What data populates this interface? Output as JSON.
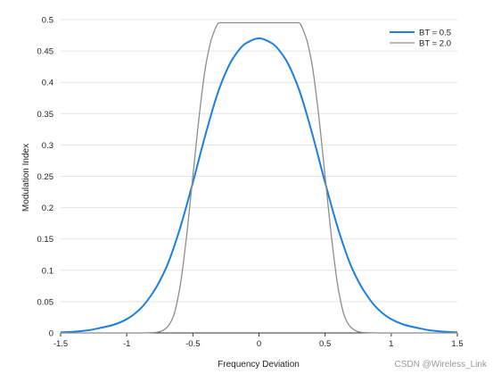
{
  "chart_data": {
    "type": "line",
    "title": "",
    "xlabel": "Frequency Deviation",
    "ylabel": "Modulation Index",
    "xlim": [
      -1.5,
      1.5
    ],
    "ylim": [
      0,
      0.5
    ],
    "x_ticks": [
      "-1.5",
      "-1",
      "-0.5",
      "0",
      "0.5",
      "1",
      "1.5"
    ],
    "y_ticks": [
      "0",
      "0.05",
      "0.1",
      "0.15",
      "0.2",
      "0.25",
      "0.3",
      "0.35",
      "0.4",
      "0.45",
      "0.5"
    ],
    "grid": "horizontal",
    "legend_position": "top-right",
    "series": [
      {
        "name": "BT = 0.5",
        "color": "#1a7fe0",
        "x": [
          -1.5,
          -1.4,
          -1.3,
          -1.2,
          -1.1,
          -1.0,
          -0.9,
          -0.8,
          -0.7,
          -0.6,
          -0.5,
          -0.4,
          -0.3,
          -0.2,
          -0.1,
          0.0,
          0.1,
          0.2,
          0.3,
          0.4,
          0.5,
          0.6,
          0.7,
          0.8,
          0.9,
          1.0,
          1.1,
          1.2,
          1.3,
          1.4,
          1.5
        ],
        "values": [
          0.001,
          0.002,
          0.004,
          0.008,
          0.013,
          0.022,
          0.038,
          0.065,
          0.105,
          0.165,
          0.24,
          0.32,
          0.39,
          0.437,
          0.462,
          0.47,
          0.462,
          0.437,
          0.39,
          0.32,
          0.24,
          0.165,
          0.105,
          0.065,
          0.038,
          0.022,
          0.013,
          0.008,
          0.004,
          0.002,
          0.001
        ]
      },
      {
        "name": "BT = 2.0",
        "color": "#8c8c8c",
        "x": [
          -1.5,
          -0.9,
          -0.8,
          -0.75,
          -0.7,
          -0.65,
          -0.6,
          -0.55,
          -0.5,
          -0.45,
          -0.4,
          -0.35,
          -0.3,
          0.3,
          0.35,
          0.4,
          0.45,
          0.5,
          0.55,
          0.6,
          0.65,
          0.7,
          0.75,
          0.8,
          0.9,
          1.5
        ],
        "values": [
          0.0,
          0.0,
          0.0005,
          0.002,
          0.008,
          0.025,
          0.07,
          0.15,
          0.25,
          0.35,
          0.43,
          0.475,
          0.495,
          0.495,
          0.475,
          0.43,
          0.35,
          0.25,
          0.15,
          0.07,
          0.025,
          0.008,
          0.002,
          0.0005,
          0.0,
          0.0
        ]
      }
    ]
  },
  "watermark": "CSDN @Wireless_Link"
}
